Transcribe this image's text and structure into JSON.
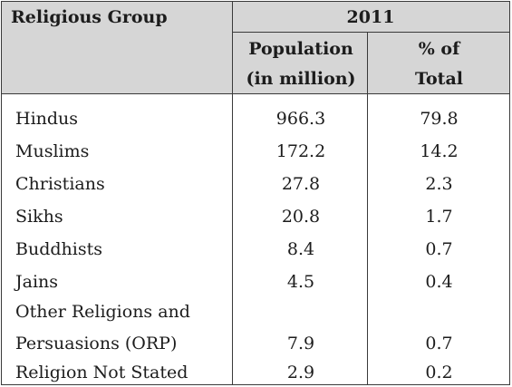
{
  "header": {
    "group_label": "Religious Group",
    "year": "2011",
    "col_population_line1": "Population",
    "col_population_line2": "(in million)",
    "col_percent_line1": "% of",
    "col_percent_line2": "Total"
  },
  "rows": [
    {
      "group": "Hindus",
      "population": "966.3",
      "percent": "79.8"
    },
    {
      "group": "Muslims",
      "population": "172.2",
      "percent": "14.2"
    },
    {
      "group": "Christians",
      "population": "27.8",
      "percent": "2.3"
    },
    {
      "group": "Sikhs",
      "population": "20.8",
      "percent": "1.7"
    },
    {
      "group": "Buddhists",
      "population": "8.4",
      "percent": "0.7"
    },
    {
      "group": "Jains",
      "population": "4.5",
      "percent": "0.4"
    },
    {
      "group_line1": "Other Religions and",
      "group_line2": "Persuasions (ORP)",
      "population": "7.9",
      "percent": "0.7"
    },
    {
      "group": "Religion Not Stated",
      "population": "2.9",
      "percent": "0.2"
    }
  ]
}
